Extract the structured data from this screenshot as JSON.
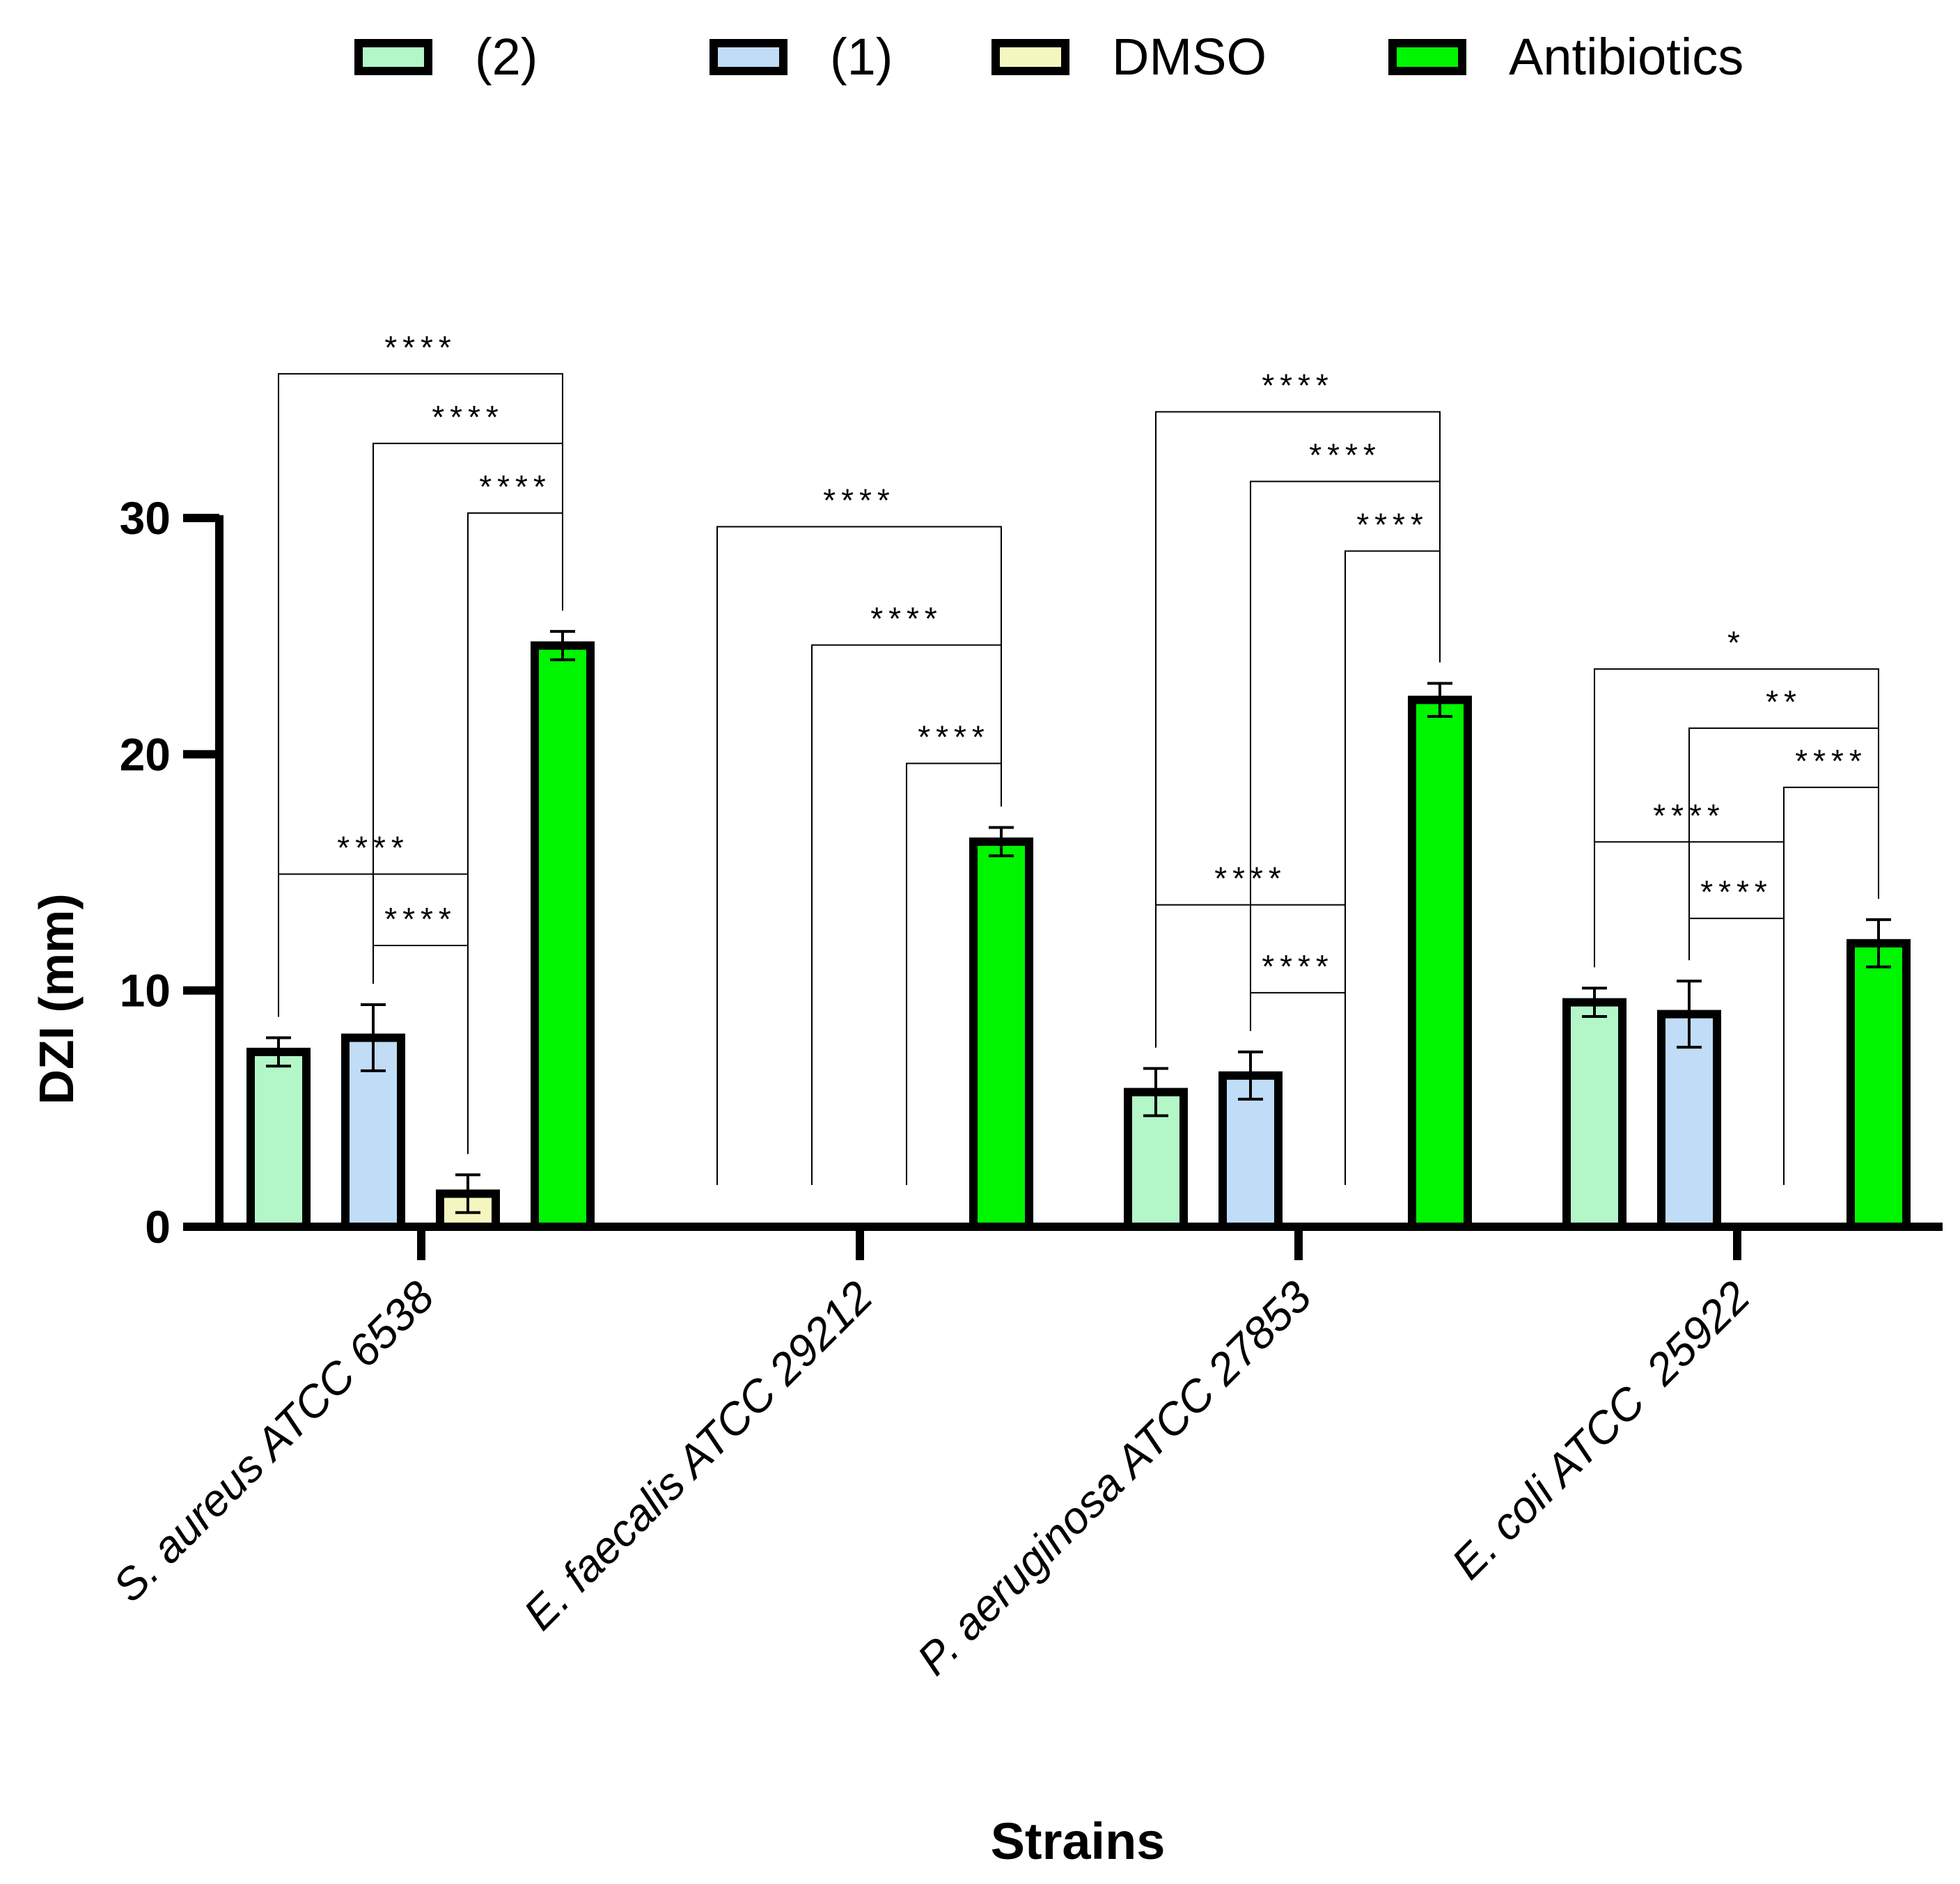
{
  "chart_data": {
    "type": "bar",
    "xlabel": "Strains",
    "ylabel": "DZI (mm)",
    "ylim": [
      0,
      30
    ],
    "yticks": [
      0,
      10,
      20,
      30
    ],
    "grid": false,
    "legend_position": "top",
    "categories": [
      "S. aureus ATCC 6538",
      "E. faecalis ATCC 29212",
      "P. aeruginosa ATCC 27853",
      "E. coli ATCC  25922"
    ],
    "series": [
      {
        "name": "(2)",
        "color": "#b3f7c9",
        "values": [
          7.4,
          0,
          5.7,
          9.5
        ],
        "errors": [
          0.6,
          0,
          1.0,
          0.6
        ]
      },
      {
        "name": "(1)",
        "color": "#c0dcf6",
        "values": [
          8.0,
          0,
          6.4,
          9.0
        ],
        "errors": [
          1.4,
          0,
          1.0,
          1.4
        ]
      },
      {
        "name": "DMSO",
        "color": "#f5f7c0",
        "values": [
          1.4,
          0,
          0,
          0
        ],
        "errors": [
          0.8,
          0,
          0,
          0
        ]
      },
      {
        "name": "Antibiotics",
        "color": "#00f500",
        "values": [
          24.6,
          16.3,
          22.3,
          12.0
        ],
        "errors": [
          0.6,
          0.6,
          0.7,
          1.0
        ]
      }
    ],
    "significance": [
      {
        "group": 0,
        "from": 0,
        "to": 3,
        "label": "****",
        "level": 3
      },
      {
        "group": 0,
        "from": 1,
        "to": 3,
        "label": "****",
        "level": 2
      },
      {
        "group": 0,
        "from": 2,
        "to": 3,
        "label": "****",
        "level": 1
      },
      {
        "group": 0,
        "from": 0,
        "to": 2,
        "label": "****",
        "level": 1
      },
      {
        "group": 0,
        "from": 1,
        "to": 2,
        "label": "****",
        "level": 0
      },
      {
        "group": 1,
        "from": 0,
        "to": 3,
        "label": "****",
        "level": 2
      },
      {
        "group": 1,
        "from": 1,
        "to": 3,
        "label": "****",
        "level": 1
      },
      {
        "group": 1,
        "from": 2,
        "to": 3,
        "label": "****",
        "level": 0
      },
      {
        "group": 2,
        "from": 0,
        "to": 3,
        "label": "****",
        "level": 3
      },
      {
        "group": 2,
        "from": 1,
        "to": 3,
        "label": "****",
        "level": 2
      },
      {
        "group": 2,
        "from": 2,
        "to": 3,
        "label": "****",
        "level": 1
      },
      {
        "group": 2,
        "from": 0,
        "to": 2,
        "label": "****",
        "level": 1
      },
      {
        "group": 2,
        "from": 1,
        "to": 2,
        "label": "****",
        "level": 0
      },
      {
        "group": 3,
        "from": 0,
        "to": 3,
        "label": "*",
        "level": 3
      },
      {
        "group": 3,
        "from": 1,
        "to": 3,
        "label": "**",
        "level": 2
      },
      {
        "group": 3,
        "from": 2,
        "to": 3,
        "label": "****",
        "level": 1
      },
      {
        "group": 3,
        "from": 0,
        "to": 2,
        "label": "****",
        "level": 1
      },
      {
        "group": 3,
        "from": 1,
        "to": 2,
        "label": "****",
        "level": 0
      }
    ]
  }
}
